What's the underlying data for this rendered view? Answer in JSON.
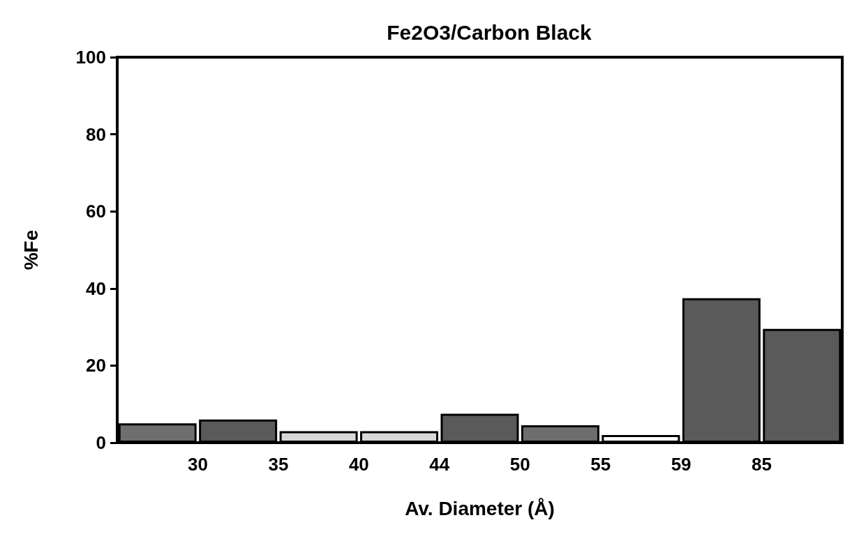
{
  "chart_data": {
    "type": "bar",
    "title": "Fe2O3/Carbon Black",
    "xlabel": "Av. Diameter (Å)",
    "ylabel": "%Fe",
    "categories": [
      null,
      null,
      null,
      null,
      null,
      null,
      null,
      null,
      null
    ],
    "values": [
      5,
      6,
      3,
      3,
      7.5,
      4.5,
      2,
      37.5,
      29.5
    ],
    "colors": [
      "#6e6e6e",
      "#5a5a5a",
      "#d9d9d9",
      "#d9d9d9",
      "#5a5a5a",
      "#6e6e6e",
      "#ffffff",
      "#5a5a5a",
      "#5a5a5a"
    ],
    "annotations": [
      "30",
      "35",
      "40",
      "44",
      "50",
      "55",
      "59",
      "85"
    ],
    "ylim": [
      0,
      100
    ],
    "yticks": [
      0,
      20,
      40,
      60,
      80,
      100
    ],
    "grid": false
  }
}
